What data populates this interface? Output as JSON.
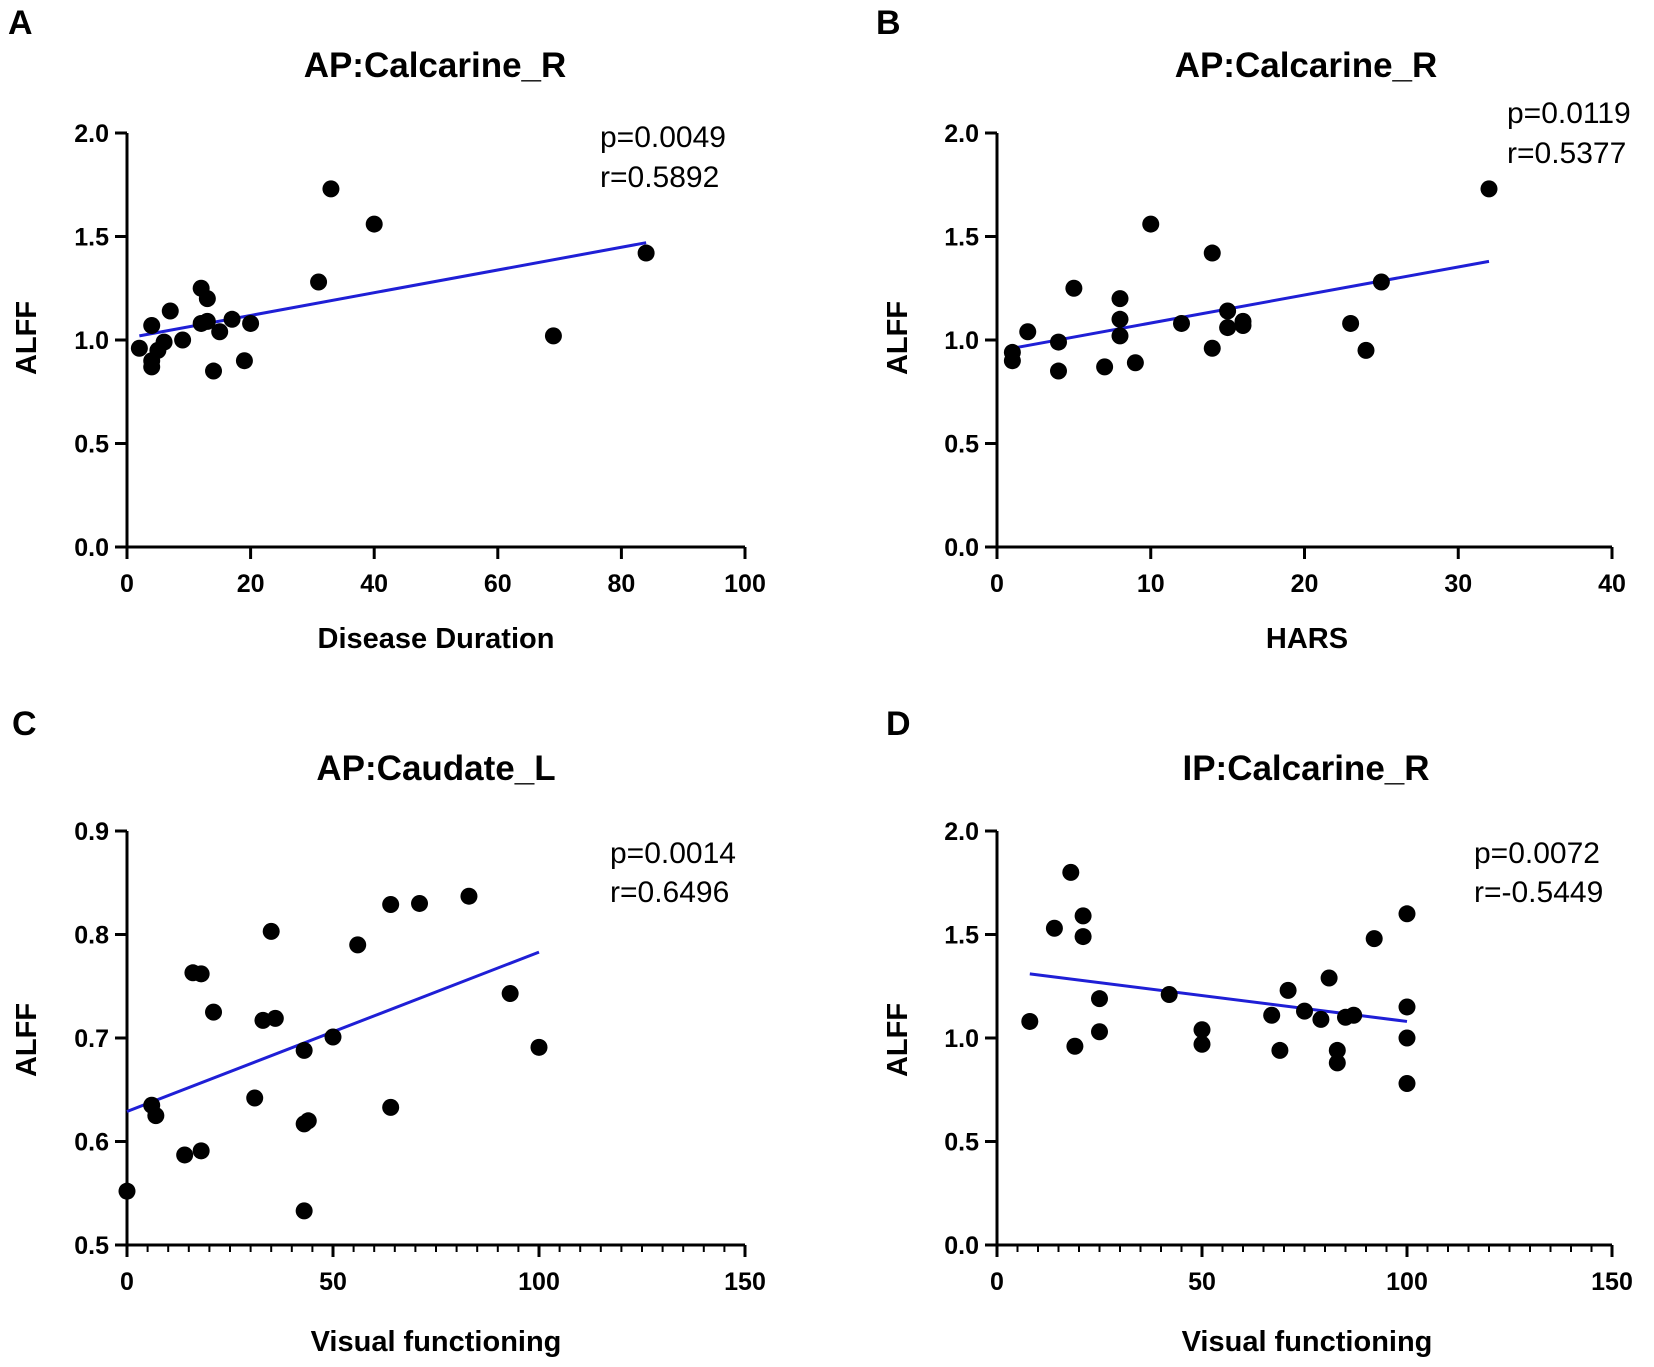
{
  "colors": {
    "fit_line": "#1f1fd6",
    "points": "#000000",
    "axes": "#000000"
  },
  "chart_data": [
    {
      "panel": "A",
      "type": "scatter",
      "title": "AP:Calcarine_R",
      "xlabel": "Disease Duration",
      "ylabel": "ALFF",
      "xlim": [
        0,
        100
      ],
      "ylim": [
        0,
        2.0
      ],
      "xticks": [
        0,
        20,
        40,
        60,
        80,
        100
      ],
      "xtick_labels": [
        "0",
        "20",
        "40",
        "60",
        "80",
        "100"
      ],
      "yticks": [
        0,
        0.5,
        1.0,
        1.5,
        2.0
      ],
      "ytick_labels": [
        "0.0",
        "0.5",
        "1.0",
        "1.5",
        "2.0"
      ],
      "minor_xticks": [],
      "stats": [
        "p=0.0049",
        "r=0.5892"
      ],
      "fit_line": [
        [
          2,
          1.02
        ],
        [
          84,
          1.47
        ]
      ],
      "points": [
        [
          2,
          0.96
        ],
        [
          4,
          0.87
        ],
        [
          4,
          0.9
        ],
        [
          4,
          1.07
        ],
        [
          5,
          0.95
        ],
        [
          6,
          0.99
        ],
        [
          7,
          1.14
        ],
        [
          9,
          1.0
        ],
        [
          12,
          1.25
        ],
        [
          12,
          1.08
        ],
        [
          13,
          1.2
        ],
        [
          13,
          1.09
        ],
        [
          14,
          0.85
        ],
        [
          15,
          1.04
        ],
        [
          17,
          1.1
        ],
        [
          19,
          0.9
        ],
        [
          20,
          1.08
        ],
        [
          31,
          1.28
        ],
        [
          33,
          1.73
        ],
        [
          40,
          1.56
        ],
        [
          69,
          1.02
        ],
        [
          84,
          1.42
        ]
      ]
    },
    {
      "panel": "B",
      "type": "scatter",
      "title": "AP:Calcarine_R",
      "xlabel": "HARS",
      "ylabel": "ALFF",
      "xlim": [
        0,
        40
      ],
      "ylim": [
        0,
        2.0
      ],
      "xticks": [
        0,
        10,
        20,
        30,
        40
      ],
      "xtick_labels": [
        "0",
        "10",
        "20",
        "30",
        "40"
      ],
      "yticks": [
        0,
        0.5,
        1.0,
        1.5,
        2.0
      ],
      "ytick_labels": [
        "0.0",
        "0.5",
        "1.0",
        "1.5",
        "2.0"
      ],
      "minor_xticks": [],
      "stats": [
        "p=0.0119",
        "r=0.5377"
      ],
      "fit_line": [
        [
          1,
          0.96
        ],
        [
          32,
          1.38
        ]
      ],
      "points": [
        [
          1,
          0.94
        ],
        [
          1,
          0.9
        ],
        [
          2,
          1.04
        ],
        [
          4,
          0.99
        ],
        [
          4,
          0.85
        ],
        [
          5,
          1.25
        ],
        [
          7,
          0.87
        ],
        [
          8,
          1.2
        ],
        [
          8,
          1.1
        ],
        [
          8,
          1.02
        ],
        [
          9,
          0.89
        ],
        [
          10,
          1.56
        ],
        [
          12,
          1.08
        ],
        [
          14,
          1.42
        ],
        [
          14,
          0.96
        ],
        [
          15,
          1.14
        ],
        [
          15,
          1.06
        ],
        [
          16,
          1.07
        ],
        [
          16,
          1.09
        ],
        [
          23,
          1.08
        ],
        [
          24,
          0.95
        ],
        [
          25,
          1.28
        ],
        [
          32,
          1.73
        ]
      ]
    },
    {
      "panel": "C",
      "type": "scatter",
      "title": "AP:Caudate_L",
      "xlabel": "Visual functioning",
      "ylabel": "ALFF",
      "xlim": [
        0,
        150
      ],
      "ylim": [
        0.5,
        0.9
      ],
      "xticks": [
        0,
        50,
        100,
        150
      ],
      "xtick_labels": [
        "0",
        "50",
        "100",
        "150"
      ],
      "yticks": [
        0.5,
        0.6,
        0.7,
        0.8,
        0.9
      ],
      "ytick_labels": [
        "0.5",
        "0.6",
        "0.7",
        "0.8",
        "0.9"
      ],
      "minor_xticks": [
        5,
        10,
        15,
        20,
        25,
        30,
        35,
        40,
        45,
        55,
        60,
        65,
        70,
        75,
        80,
        85,
        90,
        95,
        105,
        110,
        115,
        120,
        125,
        130,
        135,
        140,
        145
      ],
      "stats": [
        "p=0.0014",
        "r=0.6496"
      ],
      "fit_line": [
        [
          0,
          0.629
        ],
        [
          100,
          0.783
        ]
      ],
      "points": [
        [
          0,
          0.552
        ],
        [
          6,
          0.635
        ],
        [
          7,
          0.625
        ],
        [
          14,
          0.587
        ],
        [
          16,
          0.763
        ],
        [
          18,
          0.762
        ],
        [
          18,
          0.591
        ],
        [
          21,
          0.725
        ],
        [
          31,
          0.642
        ],
        [
          33,
          0.717
        ],
        [
          35,
          0.803
        ],
        [
          36,
          0.719
        ],
        [
          43,
          0.688
        ],
        [
          43,
          0.617
        ],
        [
          44,
          0.62
        ],
        [
          43,
          0.533
        ],
        [
          50,
          0.701
        ],
        [
          56,
          0.79
        ],
        [
          64,
          0.829
        ],
        [
          64,
          0.633
        ],
        [
          71,
          0.83
        ],
        [
          83,
          0.837
        ],
        [
          93,
          0.743
        ],
        [
          100,
          0.691
        ]
      ]
    },
    {
      "panel": "D",
      "type": "scatter",
      "title": "IP:Calcarine_R",
      "xlabel": "Visual functioning",
      "ylabel": "ALFF",
      "xlim": [
        0,
        150
      ],
      "ylim": [
        0,
        2.0
      ],
      "xticks": [
        0,
        50,
        100,
        150
      ],
      "xtick_labels": [
        "0",
        "50",
        "100",
        "150"
      ],
      "yticks": [
        0,
        0.5,
        1.0,
        1.5,
        2.0
      ],
      "ytick_labels": [
        "0.0",
        "0.5",
        "1.0",
        "1.5",
        "2.0"
      ],
      "minor_xticks": [
        5,
        10,
        15,
        20,
        25,
        30,
        35,
        40,
        45,
        55,
        60,
        65,
        70,
        75,
        80,
        85,
        90,
        95,
        105,
        110,
        115,
        120,
        125,
        130,
        135,
        140,
        145
      ],
      "stats": [
        "p=0.0072",
        "r=-0.5449"
      ],
      "fit_line": [
        [
          8,
          1.31
        ],
        [
          100,
          1.08
        ]
      ],
      "points": [
        [
          8,
          1.08
        ],
        [
          14,
          1.53
        ],
        [
          18,
          1.8
        ],
        [
          19,
          0.96
        ],
        [
          21,
          1.59
        ],
        [
          21,
          1.49
        ],
        [
          25,
          1.19
        ],
        [
          25,
          1.03
        ],
        [
          42,
          1.21
        ],
        [
          50,
          1.04
        ],
        [
          50,
          0.97
        ],
        [
          67,
          1.11
        ],
        [
          69,
          0.94
        ],
        [
          71,
          1.23
        ],
        [
          75,
          1.13
        ],
        [
          79,
          1.09
        ],
        [
          81,
          1.29
        ],
        [
          83,
          0.94
        ],
        [
          83,
          0.88
        ],
        [
          85,
          1.1
        ],
        [
          87,
          1.11
        ],
        [
          92,
          1.48
        ],
        [
          100,
          1.6
        ],
        [
          100,
          1.15
        ],
        [
          100,
          1.0
        ],
        [
          100,
          0.78
        ]
      ]
    }
  ]
}
